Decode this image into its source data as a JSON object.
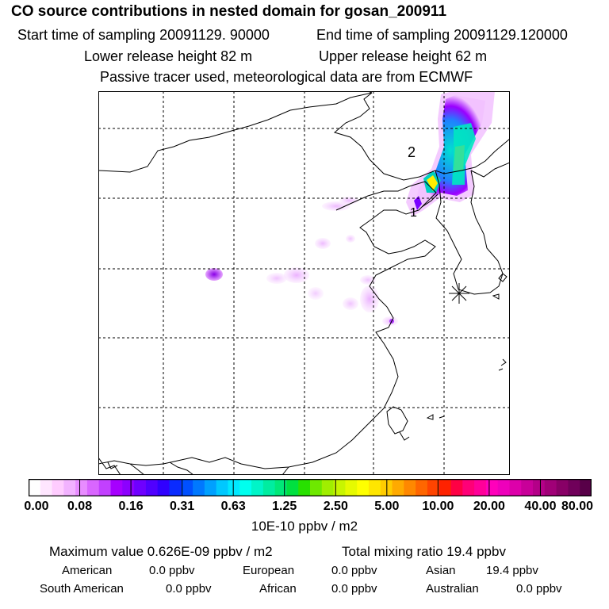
{
  "header": {
    "title": "CO  source contributions in nested domain for gosan_200911",
    "start_time": "Start time of sampling 20091129. 90000",
    "end_time": "End time of sampling 20091129.120000",
    "lower_release": "Lower release height   82 m",
    "upper_release": "Upper release height   62 m",
    "tracer_note": "Passive tracer used, meteorological data are from ECMWF"
  },
  "map": {
    "labels": {
      "receptor_1": "1",
      "receptor_2": "2"
    },
    "colors": {
      "plume_low": "#f2c2ff",
      "plume_mid": "#9a00ff",
      "plume_high": "#00e0d0",
      "plume_peak": "#ffee00"
    }
  },
  "legend": {
    "ticks": [
      "0.00",
      "0.08",
      "0.16",
      "0.31",
      "0.63",
      "1.25",
      "2.50",
      "5.00",
      "10.00",
      "20.00",
      "40.00",
      "80.00"
    ],
    "colors": [
      "#ffffff",
      "#ffe6ff",
      "#ffccff",
      "#f2b2ff",
      "#e88cff",
      "#d966ff",
      "#c240ff",
      "#a600ff",
      "#8c00ff",
      "#6e00ff",
      "#5000ff",
      "#3000ff",
      "#0a2bff",
      "#0050ff",
      "#0078ff",
      "#00a0ff",
      "#00c8ff",
      "#00e8ff",
      "#00ffee",
      "#00f5c8",
      "#00eda0",
      "#00e878",
      "#00e040",
      "#28e000",
      "#6ee800",
      "#a0ee00",
      "#c8f500",
      "#e6fa00",
      "#ffff00",
      "#ffe600",
      "#ffcc00",
      "#ffaa00",
      "#ff8800",
      "#ff6600",
      "#ff4400",
      "#ff2200",
      "#ff0044",
      "#ff0077",
      "#ff0099",
      "#ff00bb",
      "#ee00bb",
      "#dd00aa",
      "#c80099",
      "#b40088",
      "#a00077",
      "#880066",
      "#70005a",
      "#580048"
    ],
    "unit": "10E-10 ppbv / m2"
  },
  "stats": {
    "max_value": "Maximum value  0.626E-09 ppbv / m2",
    "total_mixing": "Total mixing ratio       19.4 ppbv",
    "american_label": "American",
    "american_value": "0.0 ppbv",
    "european_label": "European",
    "european_value": "0.0 ppbv",
    "asian_label": "Asian",
    "asian_value": "19.4 ppbv",
    "south_american_label": "South American",
    "south_american_value": "0.0 ppbv",
    "african_label": "African",
    "african_value": "0.0 ppbv",
    "australian_label": "Australian",
    "australian_value": "0.0 ppbv"
  }
}
